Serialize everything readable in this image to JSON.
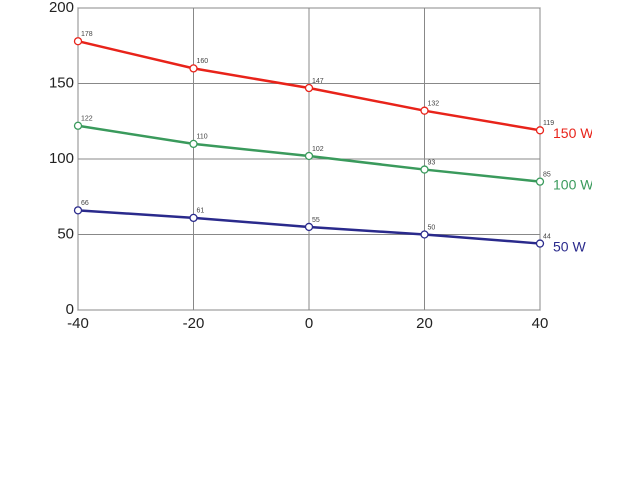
{
  "chart_data": {
    "type": "line",
    "x": [
      -40,
      -20,
      0,
      20,
      40
    ],
    "series": [
      {
        "name": "150 W",
        "color": "#e8231a",
        "values": [
          178,
          160,
          147,
          132,
          119
        ]
      },
      {
        "name": "100 W",
        "color": "#3a9a5c",
        "values": [
          122,
          110,
          102,
          93,
          85
        ]
      },
      {
        "name": "50 W",
        "color": "#2a2a8c",
        "values": [
          66,
          61,
          55,
          50,
          44
        ]
      }
    ],
    "xlim": [
      -40,
      40
    ],
    "xticks": [
      -40,
      -20,
      0,
      20,
      40
    ],
    "ylim": [
      0,
      200
    ],
    "yticks": [
      0,
      50,
      100,
      150,
      200
    ],
    "grid": true
  }
}
